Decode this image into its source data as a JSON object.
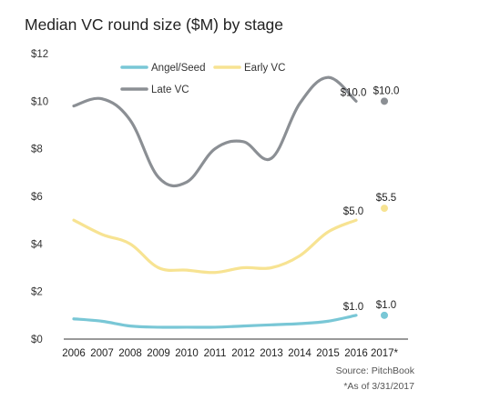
{
  "chart_data": {
    "type": "line",
    "title": "Median VC round size ($M) by stage",
    "x": [
      "2006",
      "2007",
      "2008",
      "2009",
      "2010",
      "2011",
      "2012",
      "2013",
      "2014",
      "2015",
      "2016"
    ],
    "x_extra": "2017*",
    "y_ticks": [
      "$0",
      "$2",
      "$4",
      "$6",
      "$8",
      "$10",
      "$12"
    ],
    "ylim": [
      0,
      12
    ],
    "grid": false,
    "legend_position": "top",
    "series": [
      {
        "name": "Angel/Seed",
        "color": "#79c7d6",
        "values": [
          0.85,
          0.75,
          0.55,
          0.5,
          0.5,
          0.5,
          0.55,
          0.6,
          0.65,
          0.75,
          1.0
        ],
        "end_label": "$1.0",
        "point_2017": 1.0,
        "label_2017": "$1.0"
      },
      {
        "name": "Early VC",
        "color": "#f7e392",
        "values": [
          5.0,
          4.4,
          4.0,
          3.0,
          2.9,
          2.8,
          3.0,
          3.0,
          3.5,
          4.5,
          5.0
        ],
        "end_label": "$5.0",
        "point_2017": 5.5,
        "label_2017": "$5.5"
      },
      {
        "name": "Late VC",
        "color": "#8b8f94",
        "values": [
          9.8,
          10.1,
          9.2,
          6.8,
          6.6,
          8.0,
          8.3,
          7.6,
          9.9,
          11.0,
          10.0
        ],
        "end_label": "$10.0",
        "point_2017": 10.0,
        "label_2017": "$10.0"
      }
    ]
  },
  "source": "Source: PitchBook",
  "note": "*As of 3/31/2017"
}
